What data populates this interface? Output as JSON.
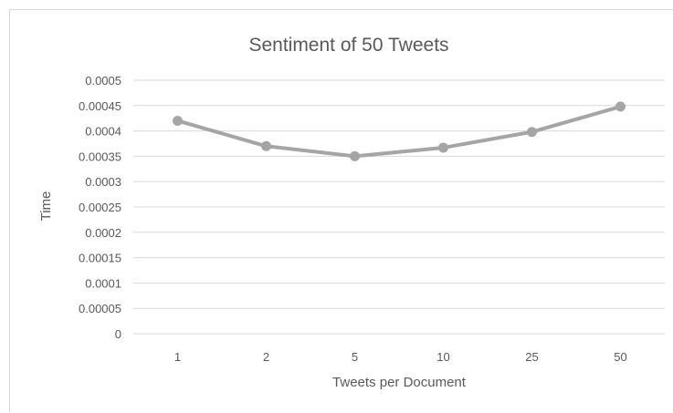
{
  "chart_data": {
    "type": "line",
    "title": "Sentiment of 50 Tweets",
    "xlabel": "Tweets per Document",
    "ylabel": "Time",
    "categories": [
      "1",
      "2",
      "5",
      "10",
      "25",
      "50"
    ],
    "series": [
      {
        "values": [
          0.00042,
          0.00037,
          0.00035,
          0.000367,
          0.000398,
          0.000448
        ]
      }
    ],
    "ylim": [
      0,
      0.0005
    ],
    "yticks": [
      "0",
      "0.00005",
      "0.0001",
      "0.00015",
      "0.0002",
      "0.00025",
      "0.0003",
      "0.00035",
      "0.0004",
      "0.00045",
      "0.0005"
    ],
    "grid": true,
    "legend": "none",
    "colors": {
      "series": "#a5a5a5",
      "grid": "#d9d9d9",
      "text": "#595959"
    }
  }
}
